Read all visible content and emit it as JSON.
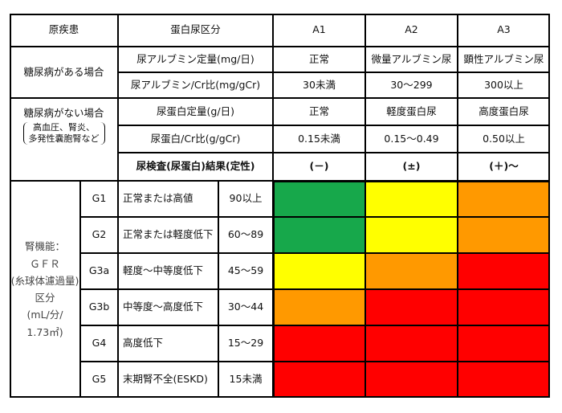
{
  "header": {
    "cause": "原疾患",
    "proteinuria_class": "蛋白尿区分",
    "stages": [
      "A1",
      "A2",
      "A3"
    ]
  },
  "diabetes": {
    "label": "糖尿病がある場合",
    "rows": [
      {
        "measure": "尿アルブミン定量(mg/日)",
        "values": [
          "正常",
          "微量アルブミン尿",
          "顕性アルブミン尿"
        ]
      },
      {
        "measure": "尿アルブミン/Cr比(mg/gCr)",
        "values": [
          "30未満",
          "30～299",
          "300以上"
        ]
      }
    ]
  },
  "non_diabetes": {
    "label": "糖尿病がない場合",
    "note_lines": [
      "高血圧、腎炎、",
      "多発性嚢胞腎など"
    ],
    "rows": [
      {
        "measure": "尿蛋白定量(g/日)",
        "values": [
          "正常",
          "軽度蛋白尿",
          "高度蛋白尿"
        ]
      },
      {
        "measure": "尿蛋白/Cr比(g/gCr)",
        "values": [
          "0.15未満",
          "0.15～0.49",
          "0.50以上"
        ]
      }
    ]
  },
  "urinalysis": {
    "label": "尿検査(尿蛋白)結果(定性)",
    "values": [
      "(－)",
      "(±)",
      "(＋)～"
    ]
  },
  "gfr": {
    "label_lines": [
      "腎機能：",
      "ＧＦＲ",
      "(糸球体濾過量)",
      "区分",
      "(mL/分/",
      "1.73㎡)"
    ],
    "rows": [
      {
        "grade": "G1",
        "description": "正常または高値",
        "range": "90以上"
      },
      {
        "grade": "G2",
        "description": "正常または軽度低下",
        "range": "60～89"
      },
      {
        "grade": "G3a",
        "description": "軽度～中等度低下",
        "range": "45～59"
      },
      {
        "grade": "G3b",
        "description": "中等度～高度低下",
        "range": "30～44"
      },
      {
        "grade": "G4",
        "description": "高度低下",
        "range": "15～29"
      },
      {
        "grade": "G5",
        "description": "末期腎不全(ESKD)",
        "range": "15未満"
      }
    ]
  }
}
